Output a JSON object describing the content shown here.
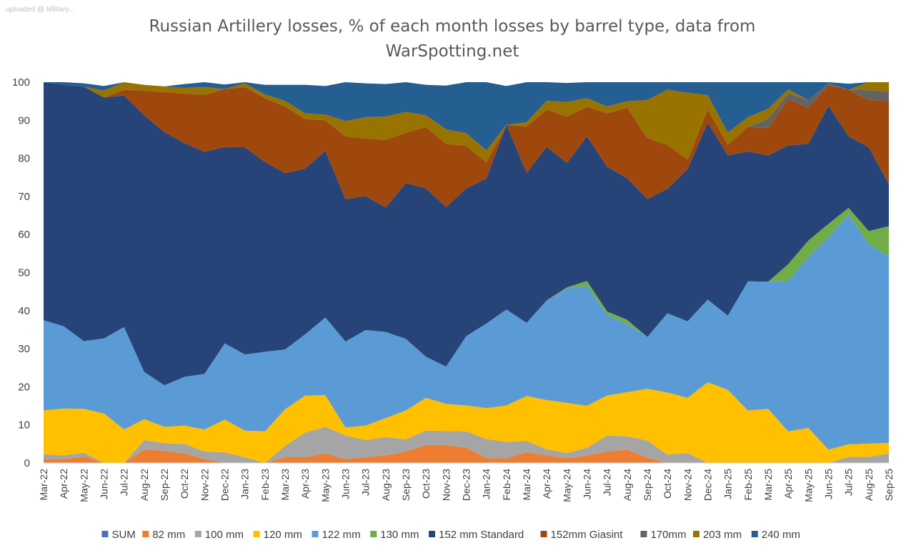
{
  "watermark": "uploaded @ Military...",
  "chart_data": {
    "type": "area",
    "stacked": true,
    "title_line1": "Russian Artillery losses, % of each month losses by barrel type, data from",
    "title_line2": "WarSpotting.net",
    "xlabel": "",
    "ylabel": "",
    "ylim": [
      0,
      100
    ],
    "yticks": [
      "0",
      "10",
      "20",
      "30",
      "40",
      "50",
      "60",
      "70",
      "80",
      "90",
      "100"
    ],
    "legend_position": "bottom",
    "categories": [
      "Mar-22",
      "Apr-22",
      "May-22",
      "Jun-22",
      "Jul-22",
      "Aug-22",
      "Sep-22",
      "Oct-22",
      "Nov-22",
      "Dec-22",
      "Jan-23",
      "Feb-23",
      "Mar-23",
      "Apr-23",
      "May-23",
      "Jun-23",
      "Jul-23",
      "Aug-23",
      "Sep-23",
      "Oct-23",
      "Nov-23",
      "Dec-23",
      "Jan-24",
      "Feb-24",
      "Mar-24",
      "Apr-24",
      "May-24",
      "Jun-24",
      "Jul-24",
      "Aug-24",
      "Sep-24",
      "Oct-24",
      "Nov-24",
      "Dec-24",
      "Jan-25",
      "Feb-25",
      "Mar-25",
      "Apr-25",
      "May-25",
      "Jun-25",
      "Jul-25",
      "Aug-25",
      "Sep-25"
    ],
    "series": [
      {
        "name": "SUM",
        "color": "#4472c4",
        "values": [
          0,
          0,
          0,
          0,
          0,
          0,
          0,
          0,
          0,
          0,
          0,
          0,
          0,
          0,
          0,
          0,
          0,
          0,
          0,
          0,
          0,
          0,
          0,
          0,
          0,
          0,
          0,
          0,
          0,
          0,
          0,
          0,
          0,
          0,
          0,
          0,
          0,
          0,
          0,
          0,
          0,
          0,
          0
        ]
      },
      {
        "name": "82 mm",
        "color": "#ed7d31",
        "values": [
          1,
          1,
          1.7,
          0,
          0,
          3.5,
          3.2,
          2.5,
          1,
          0,
          0,
          0,
          1.5,
          1.5,
          2.5,
          1,
          1.5,
          2,
          3,
          4.7,
          4.7,
          4,
          1.3,
          1.2,
          2.8,
          2,
          1.2,
          2,
          3,
          3.5,
          1.4,
          0,
          0,
          0,
          0,
          0,
          0,
          0,
          0,
          0,
          0,
          0,
          0
        ]
      },
      {
        "name": "100 mm",
        "color": "#a5a5a5",
        "values": [
          1.3,
          1,
          1,
          0,
          0,
          2.5,
          2,
          2.5,
          2,
          2.8,
          1.5,
          0,
          3,
          6.5,
          7,
          6.2,
          4.5,
          4.8,
          3.2,
          3.8,
          3.7,
          4.3,
          5,
          4.3,
          3,
          1.6,
          1.4,
          2,
          4.2,
          3.5,
          4.5,
          2.2,
          2.6,
          0,
          0,
          0,
          0,
          0,
          0,
          0,
          1.6,
          1.6,
          2.5
        ]
      },
      {
        "name": "120 mm",
        "color": "#ffc000",
        "values": [
          11.5,
          12.3,
          11.5,
          13,
          8.8,
          5.5,
          4.3,
          4.8,
          5.8,
          8.6,
          7,
          8.3,
          9.6,
          9.7,
          8.3,
          2.1,
          3.8,
          5,
          7.6,
          8.6,
          7.1,
          6.8,
          8.1,
          9.6,
          11.8,
          12.9,
          13.2,
          11,
          10.5,
          11.6,
          13.6,
          16.3,
          14.5,
          21.2,
          19.2,
          13.8,
          14.2,
          8.3,
          9.2,
          3.5,
          3.3,
          3.5,
          2.8
        ]
      },
      {
        "name": "122 mm",
        "color": "#5b9bd5",
        "values": [
          23.7,
          21.6,
          17.8,
          19.7,
          26.9,
          12.4,
          10.9,
          12.8,
          14.6,
          20,
          20,
          20.9,
          15.7,
          16.1,
          20.4,
          22.6,
          25.1,
          22.6,
          18.8,
          10.8,
          9.8,
          18.2,
          22.2,
          25.2,
          19.2,
          26.2,
          30,
          31.5,
          21.2,
          17.8,
          13.6,
          20.8,
          20.1,
          21.7,
          19.5,
          33.9,
          33.4,
          39.6,
          44.9,
          55.8,
          60.4,
          52.4,
          48.9
        ]
      },
      {
        "name": "130 mm",
        "color": "#70ad47",
        "values": [
          0,
          0,
          0,
          0,
          0,
          0,
          0,
          0,
          0,
          0,
          0,
          0,
          0,
          0,
          0,
          0,
          0,
          0,
          0,
          0,
          0,
          0,
          0,
          0,
          0,
          0,
          0.3,
          1.3,
          0.9,
          1.2,
          0,
          0,
          0,
          0,
          0,
          0,
          0,
          4.3,
          4.3,
          3.5,
          1.7,
          3.4,
          8
        ]
      },
      {
        "name": "152 mm Standard",
        "color": "#264478",
        "values": [
          62.5,
          63.4,
          66.8,
          63.3,
          60.8,
          67.4,
          66.5,
          61.4,
          58.3,
          51.6,
          54.4,
          49.8,
          46.3,
          43.5,
          43.8,
          37.4,
          35.2,
          32.7,
          40.9,
          44.2,
          41.9,
          38.8,
          38.1,
          48.5,
          39.4,
          40.3,
          32.7,
          38,
          38,
          37.2,
          36.2,
          32.7,
          40,
          46.5,
          42.1,
          34.1,
          33.2,
          31.2,
          25.4,
          31,
          18.8,
          22,
          11
        ]
      },
      {
        "name": "152mm Giasint",
        "color": "#9e480e",
        "values": [
          0,
          0,
          0,
          0,
          1.5,
          6.5,
          10.5,
          13,
          15,
          15.2,
          15.8,
          16.8,
          17.5,
          13,
          8,
          16.5,
          15.1,
          17.8,
          13.2,
          16.1,
          16.6,
          11.2,
          4.2,
          0,
          12.2,
          9.8,
          12.2,
          7.7,
          14,
          18.5,
          16,
          11.5,
          2.5,
          3.5,
          2.7,
          6.5,
          7.2,
          12.2,
          9.5,
          5.5,
          12.2,
          12.5,
          21.8
        ]
      },
      {
        "name": "170mm",
        "color": "#636363",
        "values": [
          0,
          0,
          0,
          0,
          0,
          0,
          0,
          0,
          0,
          0,
          0,
          0,
          0,
          0,
          0,
          0,
          0,
          0,
          0,
          0,
          0,
          0,
          0,
          0,
          0,
          0,
          0,
          0,
          0,
          0,
          0,
          0,
          0,
          0,
          0,
          0,
          2.3,
          1.5,
          2,
          0.5,
          0,
          2.5,
          2.5
        ]
      },
      {
        "name": "203 mm",
        "color": "#997300",
        "values": [
          0,
          0,
          0,
          1.8,
          2,
          1.5,
          1.5,
          1.5,
          2,
          0,
          1,
          1,
          1.5,
          1.5,
          1.5,
          4,
          5.6,
          6.1,
          5.5,
          3.1,
          3.8,
          3.3,
          3.2,
          0,
          1.1,
          2.3,
          3.8,
          2.3,
          1.8,
          1.7,
          10,
          14.5,
          17.5,
          3.7,
          3.3,
          2.5,
          2.7,
          1,
          0,
          0,
          0,
          2.1,
          2.5
        ]
      },
      {
        "name": "240 mm",
        "color": "#255e91",
        "values": [
          0,
          0.7,
          0.9,
          1.2,
          0,
          0,
          0,
          1,
          1.3,
          1.2,
          0.3,
          2.5,
          4.2,
          7.5,
          7.5,
          10.2,
          8.9,
          8.5,
          7.8,
          8,
          11.5,
          13.4,
          17.9,
          10.2,
          10.5,
          4.9,
          5,
          4.2,
          6.4,
          5,
          4.7,
          2,
          2.8,
          3.4,
          13.2,
          9.2,
          7,
          2,
          4.7,
          3.7,
          1.6,
          0,
          0
        ]
      }
    ]
  },
  "legend": [
    {
      "name": "SUM",
      "color": "#4472c4"
    },
    {
      "name": "82 mm",
      "color": "#ed7d31"
    },
    {
      "name": "100 mm",
      "color": "#a5a5a5"
    },
    {
      "name": "120 mm",
      "color": "#ffc000"
    },
    {
      "name": "122 mm",
      "color": "#5b9bd5"
    },
    {
      "name": "130 mm",
      "color": "#70ad47"
    },
    {
      "name": "152 mm Standard",
      "color": "#264478"
    },
    {
      "name": "152mm Giasint",
      "color": "#9e480e"
    },
    {
      "name": "170mm",
      "color": "#636363"
    },
    {
      "name": "203 mm",
      "color": "#997300"
    },
    {
      "name": "240 mm",
      "color": "#255e91"
    }
  ]
}
